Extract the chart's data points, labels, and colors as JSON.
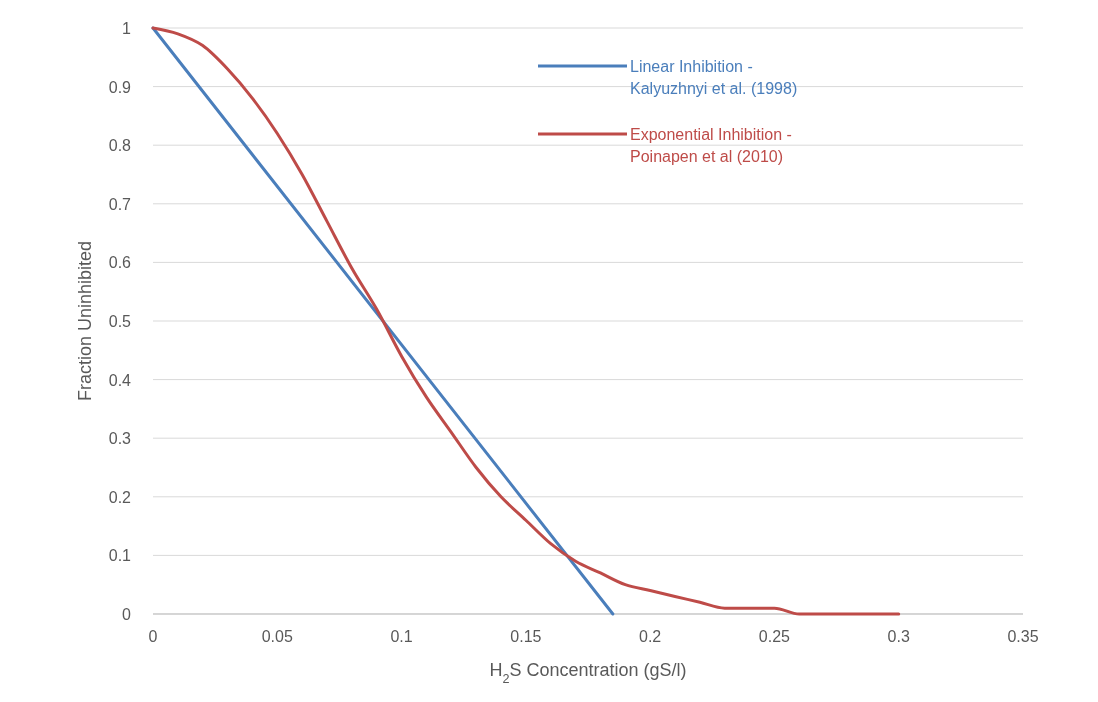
{
  "chart_data": {
    "type": "line",
    "xlabel": "H$_{2}$S Concentration (gS/l)",
    "ylabel": "Fraction Uninhibited",
    "xlim": [
      0,
      0.35
    ],
    "xticks": [
      0,
      0.05,
      0.1,
      0.15,
      0.2,
      0.25,
      0.3,
      0.35
    ],
    "ylim": [
      0,
      1
    ],
    "yticks": [
      0,
      0.1,
      0.2,
      0.3,
      0.4,
      0.5,
      0.6,
      0.7,
      0.8,
      0.9,
      1
    ],
    "grid": "y",
    "legend": "top right",
    "marker": "none",
    "line_style": "solid",
    "series": [
      {
        "name": "Linear Inhibition - Kalyuzhnyi et al. (1998)",
        "color": "#4a7ebb",
        "x": [
          0,
          0.185
        ],
        "values": [
          1,
          0
        ]
      },
      {
        "name": "Exponential Inhibition - Poinapen et al (2010)",
        "color": "#be4b48",
        "x": [
          0,
          0.01,
          0.02,
          0.03,
          0.04,
          0.05,
          0.06,
          0.07,
          0.08,
          0.09,
          0.1,
          0.11,
          0.12,
          0.13,
          0.14,
          0.15,
          0.16,
          0.17,
          0.18,
          0.19,
          0.2,
          0.21,
          0.22,
          0.23,
          0.24,
          0.25,
          0.26,
          0.27,
          0.28,
          0.29,
          0.3
        ],
        "values": [
          1,
          0.99,
          0.97,
          0.93,
          0.88,
          0.82,
          0.75,
          0.67,
          0.59,
          0.52,
          0.44,
          0.37,
          0.31,
          0.25,
          0.2,
          0.16,
          0.12,
          0.09,
          0.07,
          0.05,
          0.04,
          0.03,
          0.02,
          0.01,
          0.01,
          0.01,
          0,
          0,
          0,
          0,
          0
        ]
      }
    ]
  }
}
